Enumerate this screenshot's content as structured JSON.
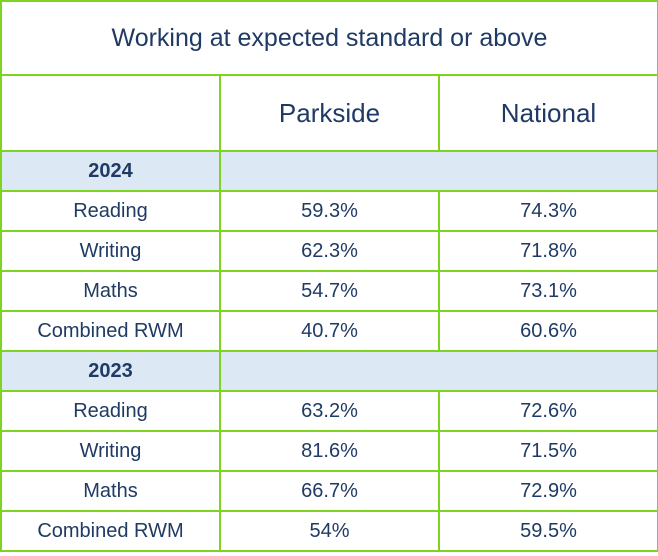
{
  "title": "Working at expected standard or above",
  "columns": [
    "",
    "Parkside",
    "National"
  ],
  "sections": [
    {
      "year": "2024",
      "rows": [
        {
          "subject": "Reading",
          "parkside": "59.3%",
          "national": "74.3%"
        },
        {
          "subject": "Writing",
          "parkside": "62.3%",
          "national": "71.8%"
        },
        {
          "subject": "Maths",
          "parkside": "54.7%",
          "national": "73.1%"
        },
        {
          "subject": "Combined RWM",
          "parkside": "40.7%",
          "national": "60.6%"
        }
      ]
    },
    {
      "year": "2023",
      "rows": [
        {
          "subject": "Reading",
          "parkside": "63.2%",
          "national": "72.6%"
        },
        {
          "subject": "Writing",
          "parkside": "81.6%",
          "national": "71.5%"
        },
        {
          "subject": "Maths",
          "parkside": "66.7%",
          "national": "72.9%"
        },
        {
          "subject": "Combined RWM",
          "parkside": "54%",
          "national": "59.5%"
        }
      ]
    }
  ],
  "colors": {
    "border": "#7ed321",
    "year_row_background": "#dce9f5",
    "text": "#1f3a64"
  }
}
